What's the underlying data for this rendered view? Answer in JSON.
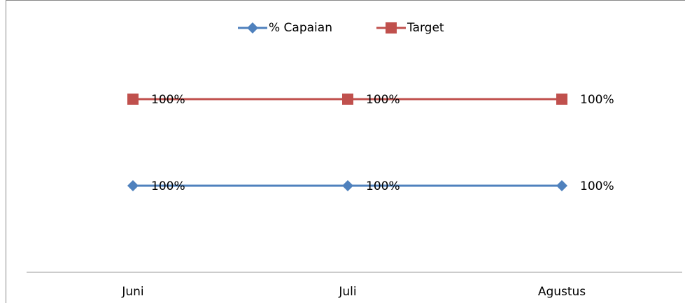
{
  "chart_data": {
    "type": "line",
    "stacked": true,
    "categories": [
      "Juni",
      "Juli",
      "Agustus"
    ],
    "series": [
      {
        "name": "% Capaian",
        "color": "#4f81bd",
        "values": [
          100,
          100,
          100
        ],
        "value_labels": [
          "100%",
          "100%",
          "100%"
        ]
      },
      {
        "name": "Target",
        "color": "#c0504d",
        "values": [
          100,
          100,
          100
        ],
        "value_labels": [
          "100%",
          "100%",
          "100%"
        ]
      }
    ],
    "legend": "top"
  }
}
